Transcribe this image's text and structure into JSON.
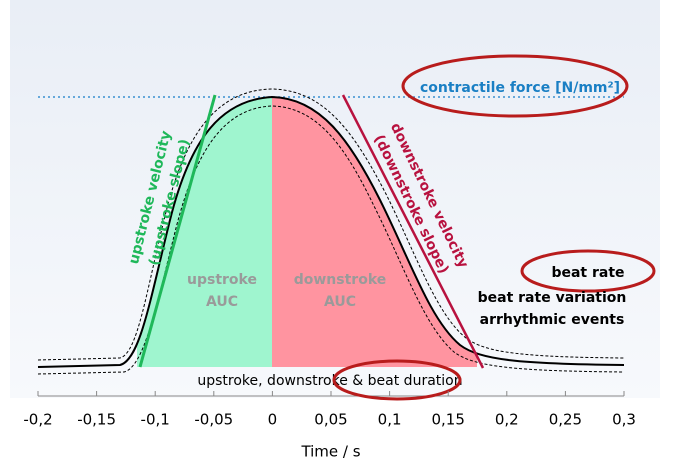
{
  "chart_data": {
    "type": "diagram",
    "xlabel": "Time / s",
    "xlim": [
      -0.2,
      0.3
    ],
    "xticks": [
      {
        "value": -0.2,
        "label": "-0,2"
      },
      {
        "value": -0.15,
        "label": "-0,15"
      },
      {
        "value": -0.1,
        "label": "-0,1"
      },
      {
        "value": -0.05,
        "label": "-0,05"
      },
      0,
      {
        "value": 0.05,
        "label": "0,05"
      },
      {
        "value": 0.1,
        "label": "0,1"
      },
      {
        "value": 0.15,
        "label": "0,15"
      },
      {
        "value": 0.2,
        "label": "0,2"
      },
      {
        "value": 0.25,
        "label": "0,25"
      },
      {
        "value": 0.3,
        "label": "0,3"
      }
    ],
    "annotations": {
      "contractile_force": "contractile force [N/mm²]",
      "upstroke_velocity": [
        "upstroke velocity",
        "(upstroke slope)"
      ],
      "downstroke_velocity": [
        "downstroke velocity",
        "(downstroke slope)"
      ],
      "upstroke_auc": [
        "upstroke",
        "AUC"
      ],
      "downstroke_auc": [
        "downstroke",
        "AUC"
      ],
      "beat_metrics": [
        "beat rate",
        "beat rate variation",
        "arrhythmic events"
      ],
      "duration": "upstroke, downstroke & beat duration"
    }
  }
}
